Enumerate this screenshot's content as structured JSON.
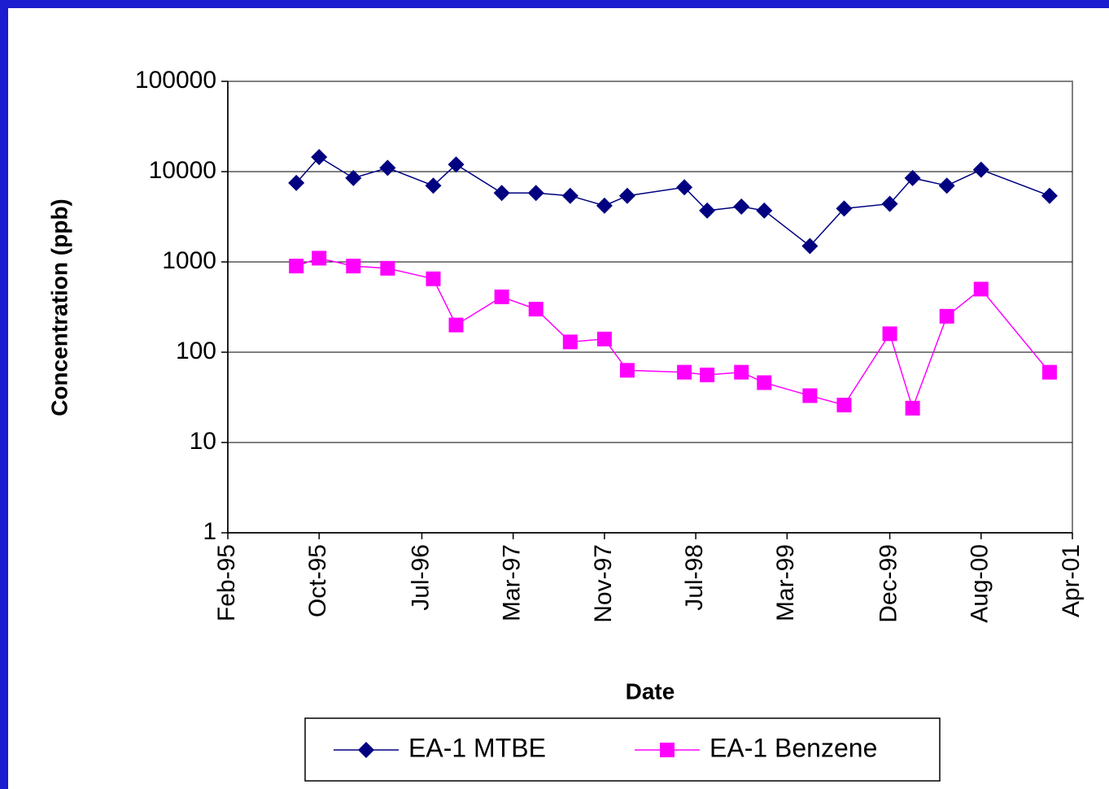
{
  "chart_data": {
    "type": "line",
    "x_label": "Date",
    "y_label": "Concentration (ppb)",
    "x": [
      "1995-08",
      "1995-10",
      "1996-01",
      "1996-04",
      "1996-08",
      "1996-10",
      "1997-02",
      "1997-05",
      "1997-08",
      "1997-11",
      "1998-01",
      "1998-06",
      "1998-08",
      "1998-11",
      "1999-01",
      "1999-05",
      "1999-08",
      "1999-12",
      "2000-02",
      "2000-05",
      "2000-08",
      "2001-02"
    ],
    "series": [
      {
        "name": "EA-1 MTBE",
        "color": "#000080",
        "marker": "diamond",
        "values": [
          7500,
          14500,
          8500,
          11000,
          7000,
          12000,
          5800,
          5800,
          5400,
          4200,
          5400,
          6700,
          3700,
          4100,
          3700,
          1500,
          3900,
          4400,
          8500,
          7000,
          10500,
          5400
        ]
      },
      {
        "name": "EA-1 Benzene",
        "color": "#ff00ff",
        "marker": "square",
        "values": [
          900,
          1100,
          900,
          850,
          650,
          200,
          410,
          300,
          130,
          140,
          63,
          60,
          56,
          60,
          46,
          33,
          26,
          160,
          24,
          250,
          500,
          60
        ]
      }
    ],
    "xlim": [
      "1995-02",
      "2001-04"
    ],
    "xticks": [
      {
        "value": "1995-02",
        "label": "Feb-95"
      },
      {
        "value": "1995-10",
        "label": "Oct-95"
      },
      {
        "value": "1996-07",
        "label": "Jul-96"
      },
      {
        "value": "1997-03",
        "label": "Mar-97"
      },
      {
        "value": "1997-11",
        "label": "Nov-97"
      },
      {
        "value": "1998-07",
        "label": "Jul-98"
      },
      {
        "value": "1999-03",
        "label": "Mar-99"
      },
      {
        "value": "1999-12",
        "label": "Dec-99"
      },
      {
        "value": "2000-08",
        "label": "Aug-00"
      },
      {
        "value": "2001-04",
        "label": "Apr-01"
      }
    ],
    "ylim": [
      1,
      100000
    ],
    "yticks": [
      1,
      10,
      100,
      1000,
      10000,
      100000
    ],
    "log_y": true,
    "grid": true,
    "legend": "bottom"
  }
}
